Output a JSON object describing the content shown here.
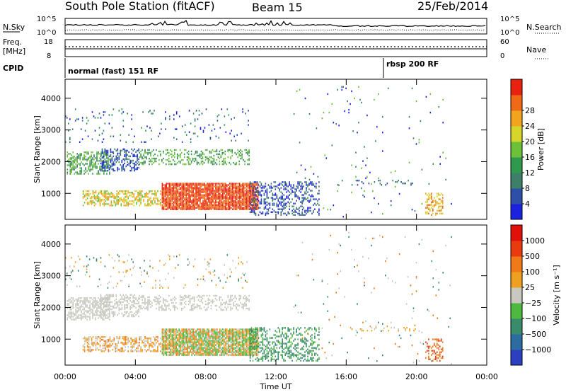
{
  "header": {
    "station": "South Pole Station (fitACF)",
    "beam": "Beam 15",
    "date": "25/Feb/2014"
  },
  "strip_panels": {
    "nsky": {
      "left_label": "N.Sky",
      "left_ticks": [
        "10^5",
        "10^0"
      ],
      "right_label": "N.Search",
      "right_ticks": [
        "10^5",
        "10^0"
      ]
    },
    "freq": {
      "left_label_line1": "Freq.",
      "left_label_line2": "[MHz]",
      "left_ticks": [
        "18",
        "8"
      ],
      "right_label": "Nave",
      "right_ticks": [
        "60",
        "0"
      ]
    },
    "cpid": {
      "label": "CPID",
      "mode1": "normal (fast) 151 RF",
      "mode2": "rbsp 200 RF"
    }
  },
  "chart_data": [
    {
      "type": "heatmap",
      "name": "power",
      "ylabel": "Slant Range [km]",
      "y_ticks": [
        "1000",
        "2000",
        "3000",
        "4000"
      ],
      "ylim": [
        180,
        4600
      ],
      "xlim": [
        0,
        24
      ],
      "colorbar": {
        "label": "Power [dB]",
        "ticks": [
          "4",
          "8",
          "12",
          "16",
          "20",
          "24",
          "28"
        ],
        "colors": [
          "#1a22e0",
          "#2d4fa8",
          "#3e7f6a",
          "#2f9a4e",
          "#6cc03a",
          "#d6d62a",
          "#f2a41e",
          "#ef6a16",
          "#e8220e"
        ]
      }
    },
    {
      "type": "heatmap",
      "name": "velocity",
      "ylabel": "Slant Range [km]",
      "y_ticks": [
        "1000",
        "2000",
        "3000",
        "4000"
      ],
      "ylim": [
        180,
        4600
      ],
      "xlim": [
        0,
        24
      ],
      "colorbar": {
        "label": "Velocity [m s⁻¹]",
        "ticks": [
          "1000",
          "500",
          "100",
          "25",
          "−25",
          "−100",
          "−500",
          "−1000"
        ],
        "colors": [
          "#2b3fc0",
          "#2d6ca0",
          "#3a8a6c",
          "#4fb840",
          "#c8c8c0",
          "#f0a020",
          "#f07a18",
          "#ea3a10",
          "#e0100a"
        ]
      }
    }
  ],
  "x_axis": {
    "ticks": [
      "00:00",
      "04:00",
      "08:00",
      "12:00",
      "16:00",
      "20:00",
      "00:00"
    ],
    "label": "Time UT"
  }
}
